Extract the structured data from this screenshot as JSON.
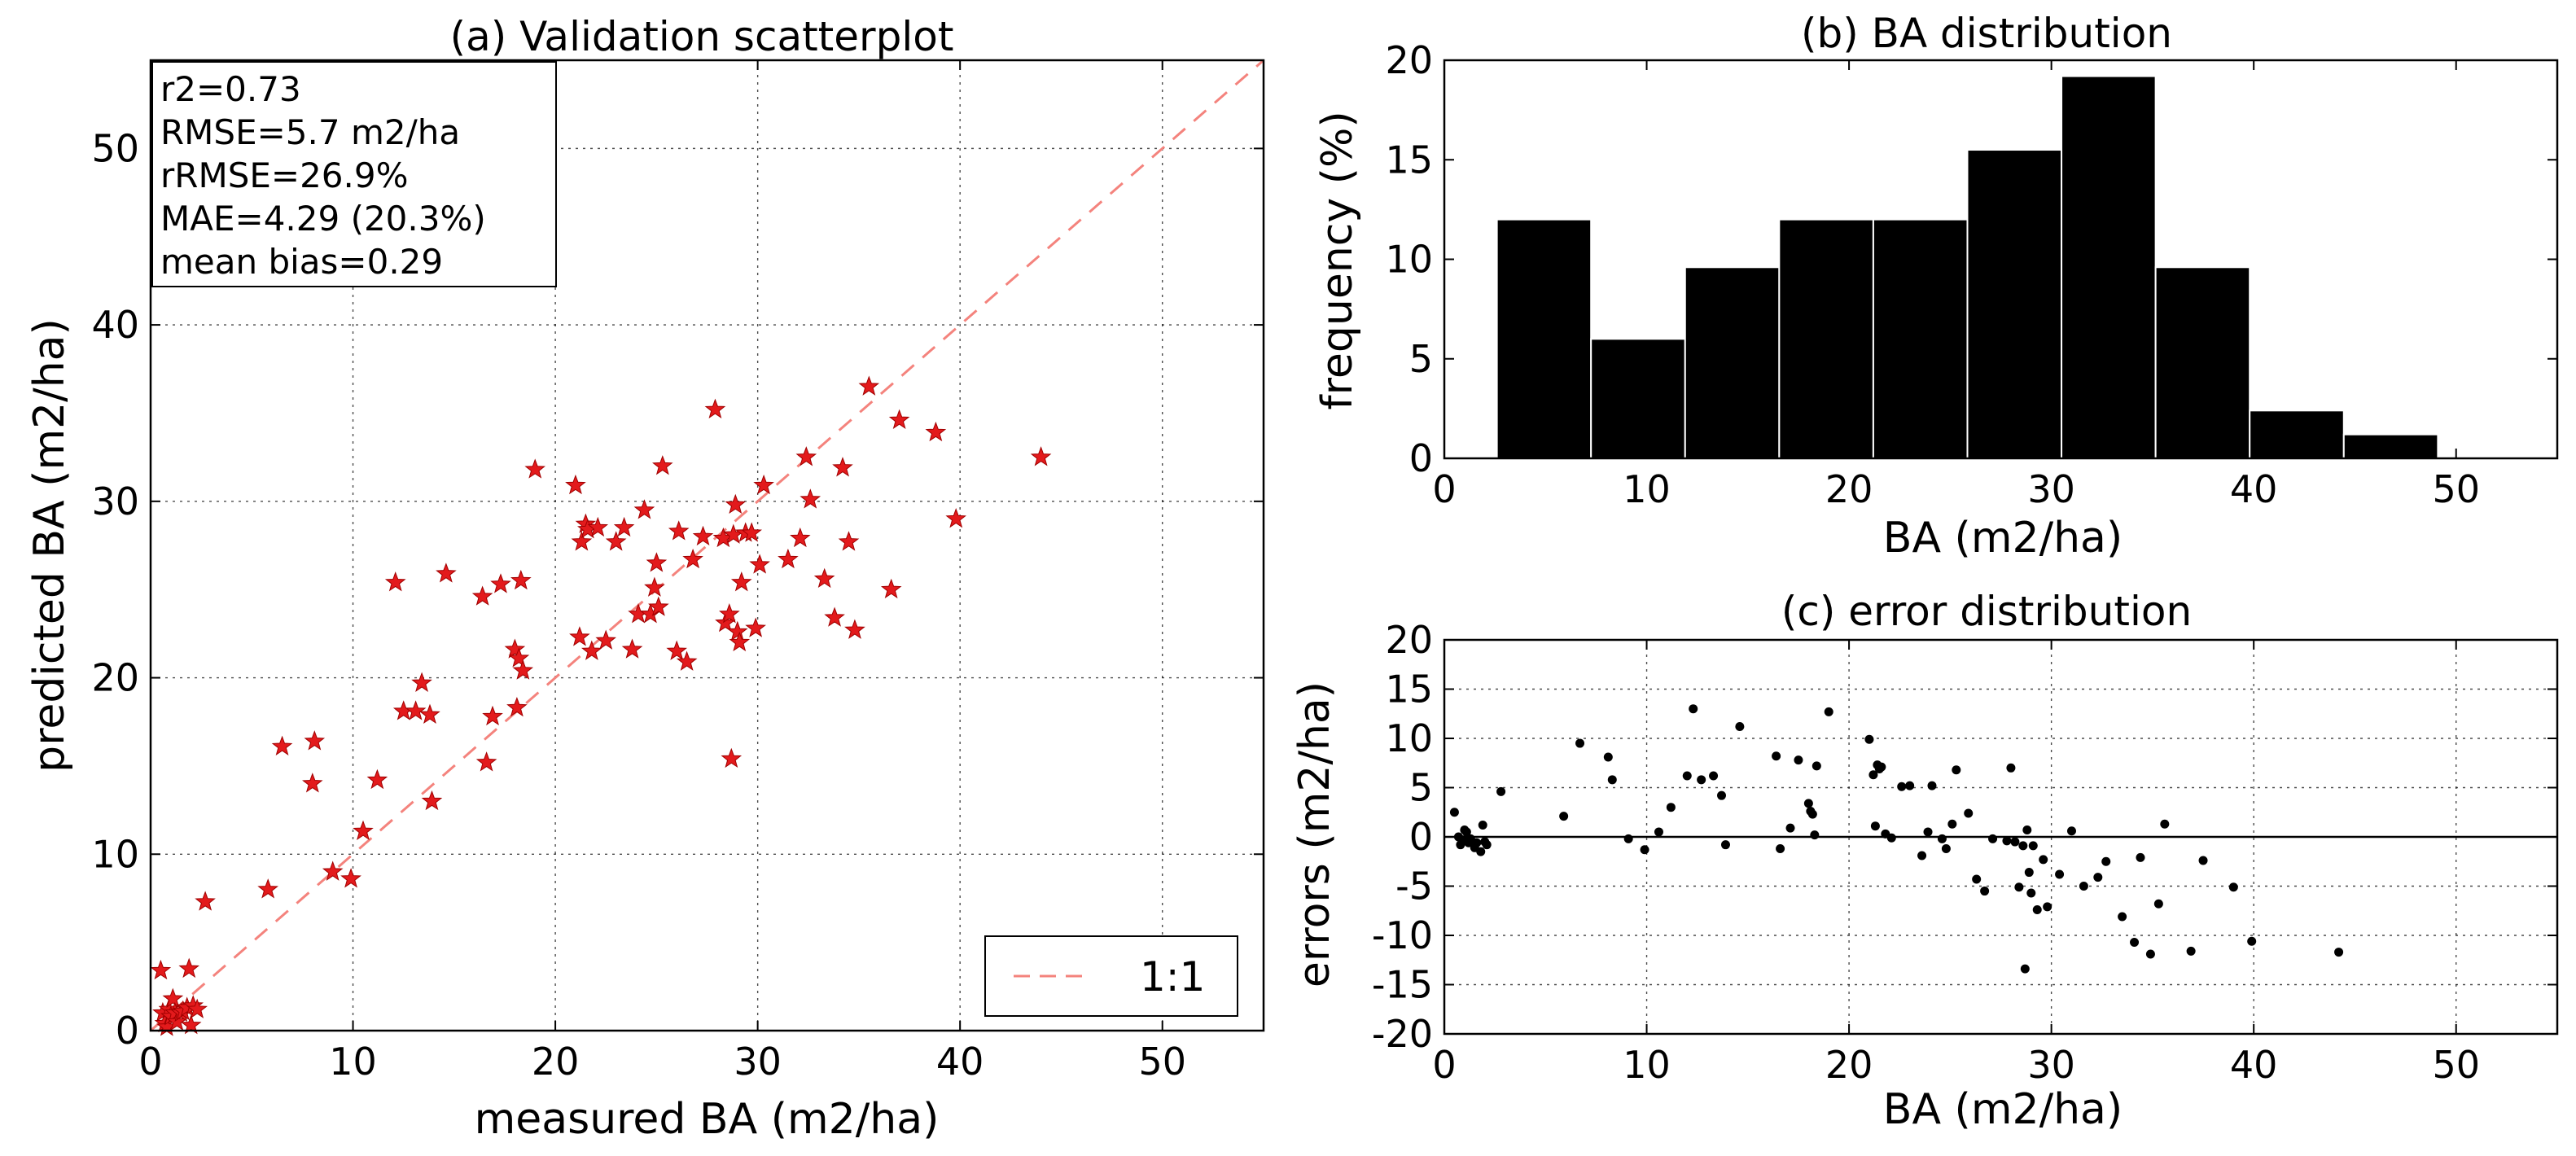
{
  "chart_data": [
    {
      "id": "a",
      "type": "scatter",
      "title": "(a) Validation scatterplot",
      "xlabel": "measured BA (m2/ha)",
      "ylabel": "predicted BA (m2/ha)",
      "xlim": [
        0,
        55
      ],
      "ylim": [
        0,
        55
      ],
      "xticks": [
        0,
        10,
        20,
        30,
        40,
        50
      ],
      "yticks": [
        0,
        10,
        20,
        30,
        40,
        50
      ],
      "grid": true,
      "marker_color": "#e31a1c",
      "reference_line": {
        "label": "1:1",
        "color": "#f4837d",
        "style": "dashed"
      },
      "legend_position": "lower-right",
      "stats": [
        "r2=0.73",
        "RMSE=5.7 m2/ha",
        "rRMSE=26.9%",
        "MAE=4.29 (20.3%)",
        "mean bias=0.29"
      ],
      "x": [
        0.5,
        0.6,
        0.7,
        0.8,
        0.9,
        1.0,
        1.1,
        1.2,
        1.3,
        1.5,
        1.6,
        1.8,
        1.9,
        2.0,
        2.1,
        2.3,
        2.7,
        5.8,
        6.5,
        8.0,
        8.1,
        9.0,
        9.9,
        10.5,
        11.2,
        12.1,
        12.5,
        13.1,
        13.4,
        13.8,
        13.9,
        14.6,
        16.4,
        16.6,
        16.9,
        17.3,
        18.0,
        18.1,
        18.2,
        18.3,
        18.4,
        19.0,
        21.0,
        21.2,
        21.3,
        21.5,
        21.6,
        21.8,
        22.1,
        22.5,
        23.0,
        23.4,
        23.8,
        24.1,
        24.4,
        24.7,
        24.9,
        25.0,
        25.1,
        25.3,
        26.0,
        26.1,
        26.5,
        26.8,
        27.3,
        27.9,
        28.3,
        28.4,
        28.6,
        28.7,
        28.8,
        28.9,
        29.0,
        29.1,
        29.2,
        29.4,
        29.7,
        29.9,
        30.1,
        30.3,
        31.5,
        32.1,
        32.4,
        32.6,
        33.3,
        33.8,
        34.2,
        34.5,
        34.8,
        35.5,
        36.6,
        37.0,
        38.8,
        39.8,
        44.0
      ],
      "y": [
        3.4,
        1.0,
        0.4,
        0.2,
        1.2,
        0.8,
        1.8,
        1.0,
        0.5,
        1.0,
        1.1,
        1.3,
        3.5,
        0.3,
        1.4,
        1.2,
        7.3,
        8.0,
        16.1,
        14.0,
        16.4,
        9.0,
        8.6,
        11.3,
        14.2,
        25.4,
        18.1,
        18.1,
        19.7,
        17.9,
        13.0,
        25.9,
        24.6,
        15.2,
        17.8,
        25.3,
        21.6,
        18.3,
        21.1,
        25.5,
        20.4,
        31.8,
        30.9,
        22.3,
        27.7,
        28.7,
        28.4,
        21.5,
        28.5,
        22.1,
        27.7,
        28.5,
        21.6,
        23.6,
        29.5,
        23.6,
        25.1,
        26.5,
        24.0,
        32.0,
        21.5,
        28.3,
        20.9,
        26.7,
        28.0,
        35.2,
        27.9,
        23.1,
        23.6,
        15.4,
        28.1,
        29.8,
        22.6,
        22.0,
        25.4,
        28.2,
        28.2,
        22.8,
        26.4,
        30.9,
        26.7,
        27.9,
        32.5,
        30.1,
        25.6,
        23.4,
        31.9,
        27.7,
        22.7,
        36.5,
        25.0,
        34.6,
        33.9,
        29.0,
        32.5
      ]
    },
    {
      "id": "b",
      "type": "bar",
      "title": "(b) BA distribution",
      "xlabel": "BA (m2/ha)",
      "ylabel": "frequency (%)",
      "xlim": [
        0,
        55
      ],
      "ylim": [
        0,
        20
      ],
      "xticks": [
        0,
        10,
        20,
        30,
        40,
        50
      ],
      "yticks": [
        0,
        5,
        10,
        15,
        20
      ],
      "grid": false,
      "bar_color": "#000000",
      "bin_edges": [
        2.6,
        7.25,
        11.9,
        16.55,
        21.2,
        25.85,
        30.5,
        35.15,
        39.8,
        44.45,
        49.1
      ],
      "values": [
        12.0,
        6.0,
        9.6,
        12.0,
        12.0,
        15.5,
        19.2,
        9.6,
        2.4,
        1.2
      ]
    },
    {
      "id": "c",
      "type": "scatter",
      "title": "(c) error distribution",
      "xlabel": "BA (m2/ha)",
      "ylabel": "errors (m2/ha)",
      "xlim": [
        0,
        55
      ],
      "ylim": [
        -20,
        20
      ],
      "xticks": [
        0,
        10,
        20,
        30,
        40,
        50
      ],
      "yticks": [
        -20,
        -15,
        -10,
        -5,
        0,
        5,
        10,
        15,
        20
      ],
      "grid": true,
      "marker_color": "#000000",
      "zero_line": true,
      "x": [
        0.5,
        0.7,
        0.8,
        0.9,
        1.0,
        1.1,
        1.2,
        1.3,
        1.5,
        1.6,
        1.8,
        1.9,
        2.0,
        2.1,
        2.8,
        5.9,
        6.7,
        8.1,
        8.3,
        9.1,
        9.9,
        10.6,
        11.2,
        12.0,
        12.3,
        12.7,
        13.3,
        13.7,
        13.9,
        14.6,
        16.4,
        16.6,
        17.1,
        17.5,
        18.0,
        18.1,
        18.2,
        18.3,
        18.4,
        19.0,
        21.0,
        21.2,
        21.3,
        21.4,
        21.5,
        21.6,
        21.8,
        22.1,
        22.6,
        23.0,
        23.6,
        23.9,
        24.1,
        24.6,
        24.8,
        25.1,
        25.3,
        25.9,
        26.3,
        26.7,
        27.1,
        27.8,
        28.0,
        28.2,
        28.4,
        28.6,
        28.7,
        28.8,
        28.9,
        29.0,
        29.1,
        29.3,
        29.6,
        29.8,
        30.4,
        31.0,
        31.6,
        32.3,
        32.7,
        33.5,
        34.1,
        34.4,
        34.9,
        35.3,
        35.6,
        36.9,
        37.5,
        39.0,
        39.9,
        44.2
      ],
      "y": [
        2.5,
        0.0,
        -0.8,
        -0.3,
        0.7,
        0.5,
        -0.6,
        -0.2,
        -1.1,
        -0.6,
        -1.5,
        1.2,
        -0.5,
        -0.8,
        4.6,
        2.1,
        9.5,
        8.1,
        5.8,
        -0.2,
        -1.3,
        0.5,
        3.0,
        6.2,
        13.0,
        5.8,
        6.2,
        4.2,
        -0.8,
        11.2,
        8.2,
        -1.2,
        0.9,
        7.8,
        3.4,
        2.6,
        2.3,
        0.2,
        7.2,
        12.7,
        9.9,
        6.3,
        1.1,
        7.3,
        6.9,
        7.1,
        0.3,
        -0.1,
        5.1,
        5.2,
        -1.9,
        0.5,
        5.2,
        -0.2,
        -1.2,
        1.3,
        6.8,
        2.4,
        -4.3,
        -5.5,
        -0.2,
        -0.4,
        7.0,
        -0.5,
        -5.1,
        -0.9,
        -13.4,
        0.7,
        -3.6,
        -5.7,
        -0.9,
        -7.4,
        -2.3,
        -7.1,
        -3.8,
        0.6,
        -5.0,
        -4.1,
        -2.5,
        -8.1,
        -10.7,
        -2.1,
        -11.9,
        -6.8,
        1.3,
        -11.6,
        -2.4,
        -5.1,
        -10.6,
        -11.7
      ]
    }
  ]
}
